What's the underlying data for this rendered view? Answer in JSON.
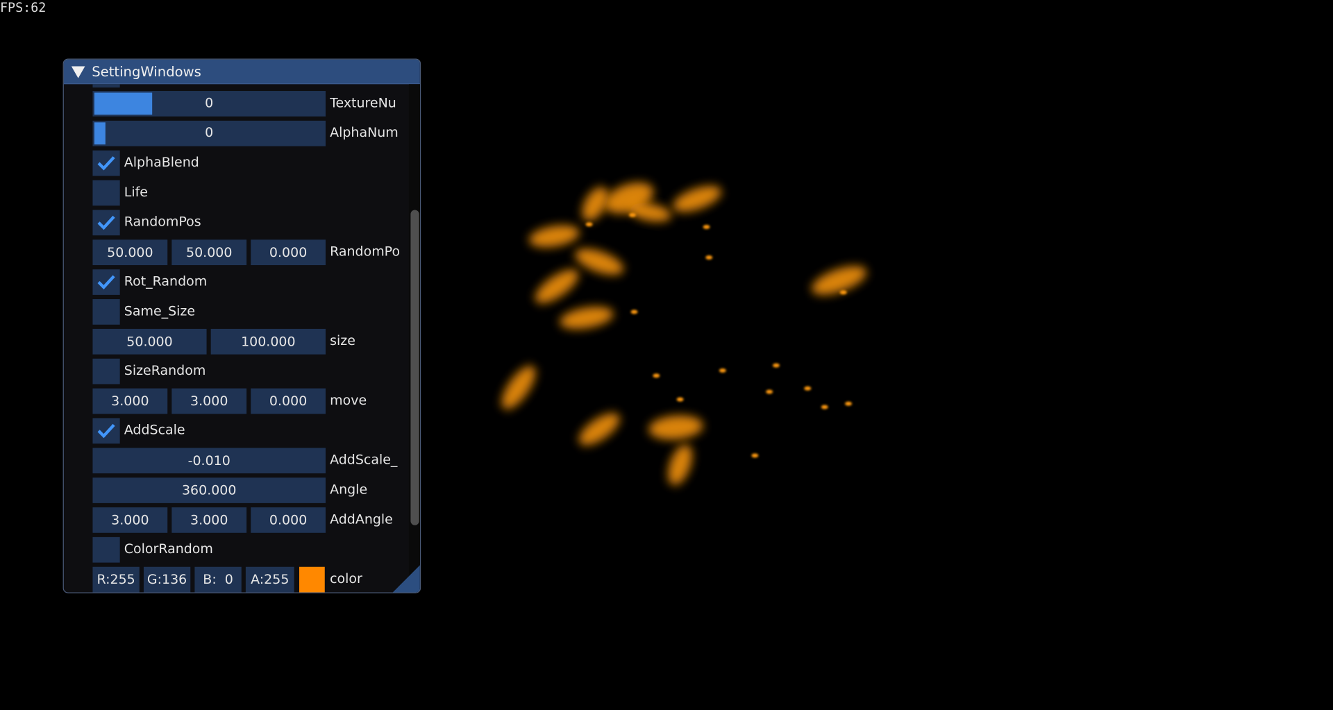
{
  "fps": "FPS:62",
  "window": {
    "title": "SettingWindows",
    "rows": [
      {
        "type": "slider",
        "value": "0",
        "label": "TextureNu"
      },
      {
        "type": "slider",
        "value": "0",
        "label": "AlphaNum"
      },
      {
        "type": "check",
        "checked": true,
        "label": "AlphaBlend"
      },
      {
        "type": "check",
        "checked": false,
        "label": "Life"
      },
      {
        "type": "check",
        "checked": true,
        "label": "RandomPos"
      },
      {
        "type": "drag",
        "values": [
          "50.000",
          "50.000",
          "0.000"
        ],
        "label": "RandomPo"
      },
      {
        "type": "check",
        "checked": true,
        "label": "Rot_Random"
      },
      {
        "type": "check",
        "checked": false,
        "label": "Same_Size"
      },
      {
        "type": "drag",
        "values": [
          "50.000",
          "100.000"
        ],
        "label": "size"
      },
      {
        "type": "check",
        "checked": false,
        "label": "SizeRandom"
      },
      {
        "type": "drag",
        "values": [
          "3.000",
          "3.000",
          "0.000"
        ],
        "label": "move"
      },
      {
        "type": "check",
        "checked": true,
        "label": "AddScale"
      },
      {
        "type": "drag",
        "values": [
          "-0.010"
        ],
        "label": "AddScale_"
      },
      {
        "type": "drag",
        "values": [
          "360.000"
        ],
        "label": "Angle"
      },
      {
        "type": "drag",
        "values": [
          "3.000",
          "3.000",
          "0.000"
        ],
        "label": "AddAngle"
      },
      {
        "type": "check",
        "checked": false,
        "label": "ColorRandom"
      },
      {
        "type": "color",
        "values": [
          "R:255",
          "G:136",
          "B:  0",
          "A:255"
        ],
        "swatch": "#ff8800",
        "label": "color"
      }
    ]
  }
}
